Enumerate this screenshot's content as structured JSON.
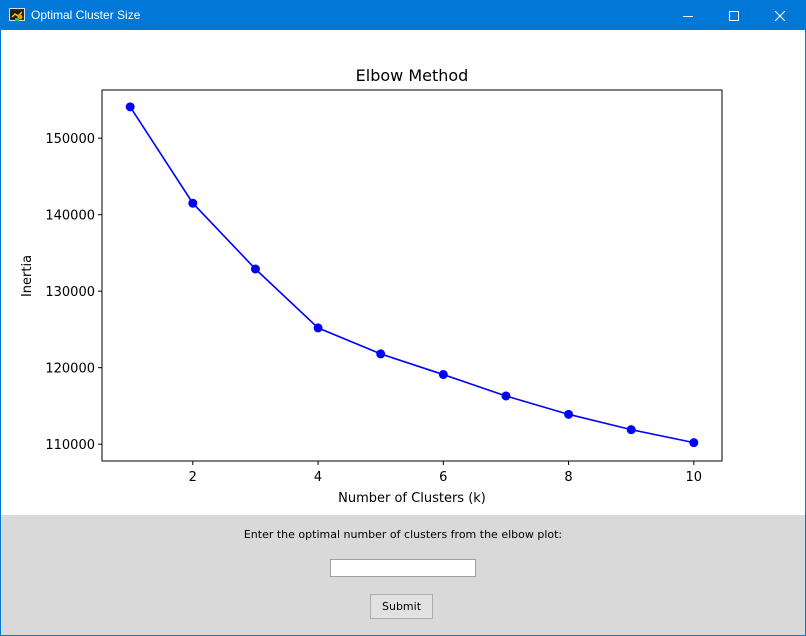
{
  "window": {
    "title": "Optimal Cluster Size",
    "accent_color": "#0078d7"
  },
  "chart_data": {
    "type": "line",
    "title": "Elbow Method",
    "xlabel": "Number of Clusters (k)",
    "ylabel": "Inertia",
    "x": [
      1,
      2,
      3,
      4,
      5,
      6,
      7,
      8,
      9,
      10
    ],
    "series": [
      {
        "values": [
          154100,
          141500,
          132900,
          125200,
          121800,
          119100,
          116300,
          113900,
          111900,
          110200
        ],
        "color": "#0000ff",
        "marker": "circle"
      }
    ],
    "xticks": [
      2,
      4,
      6,
      8,
      10
    ],
    "yticks": [
      110000,
      120000,
      130000,
      140000,
      150000
    ],
    "xlim": [
      0.55,
      10.45
    ],
    "ylim": [
      107800,
      156300
    ],
    "grid": false
  },
  "controls": {
    "prompt": "Enter the optimal number of clusters from the elbow plot:",
    "input_value": "",
    "submit_label": "Submit",
    "panel_color": "#d9d9d9"
  }
}
